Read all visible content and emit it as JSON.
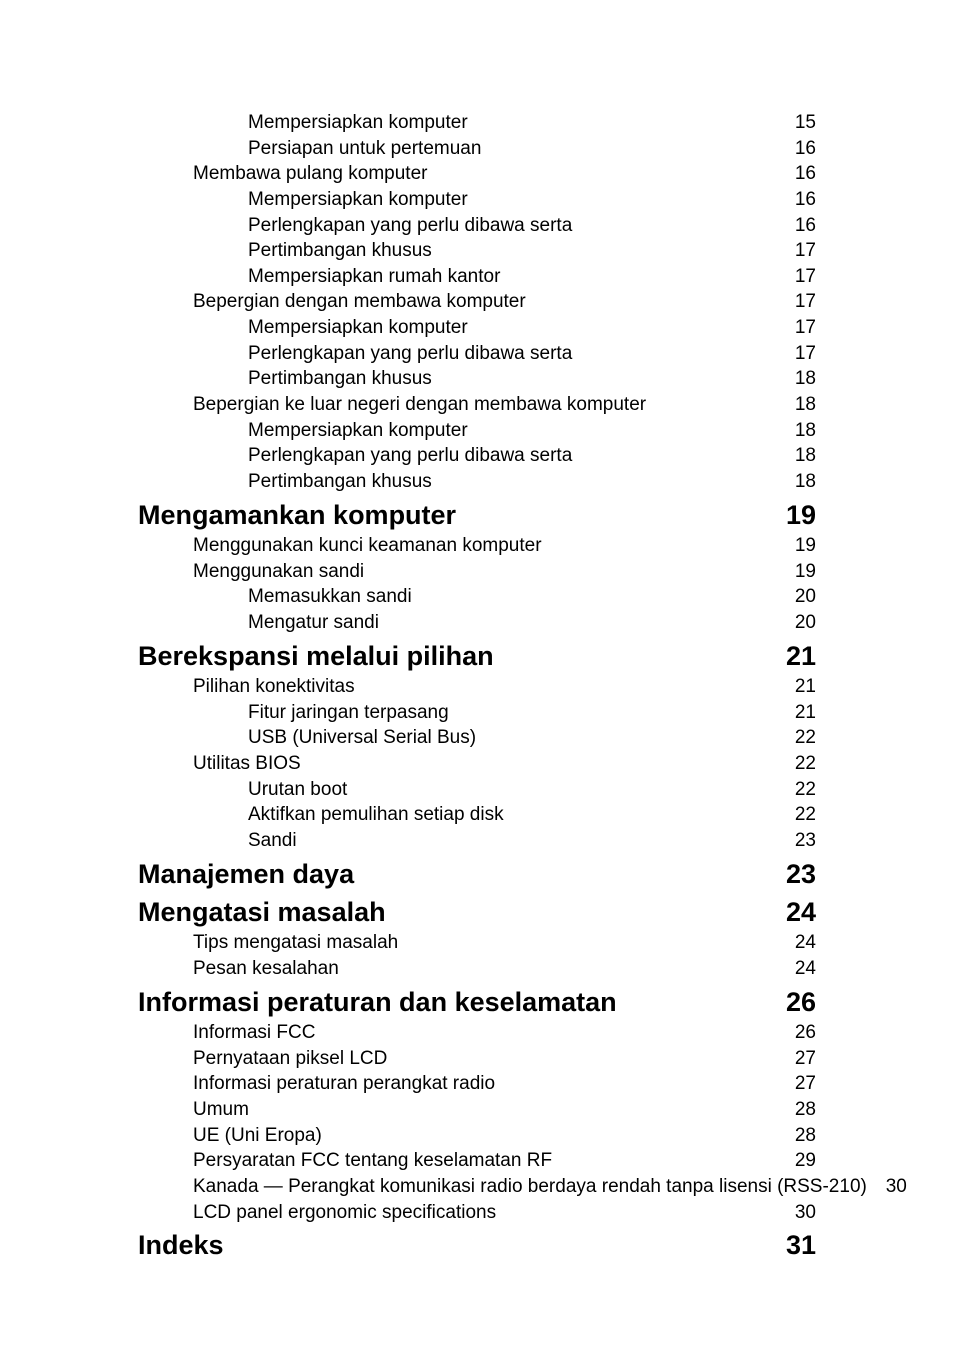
{
  "toc": [
    {
      "level": 2,
      "label": "Mempersiapkan komputer",
      "page": "15"
    },
    {
      "level": 2,
      "label": "Persiapan untuk pertemuan",
      "page": "16"
    },
    {
      "level": 1,
      "label": "Membawa pulang komputer",
      "page": "16"
    },
    {
      "level": 2,
      "label": "Mempersiapkan komputer",
      "page": "16"
    },
    {
      "level": 2,
      "label": "Perlengkapan yang perlu dibawa serta",
      "page": "16"
    },
    {
      "level": 2,
      "label": "Pertimbangan khusus",
      "page": "17"
    },
    {
      "level": 2,
      "label": "Mempersiapkan rumah kantor",
      "page": "17"
    },
    {
      "level": 1,
      "label": "Bepergian dengan membawa komputer",
      "page": "17"
    },
    {
      "level": 2,
      "label": "Mempersiapkan komputer",
      "page": "17"
    },
    {
      "level": 2,
      "label": "Perlengkapan yang perlu dibawa serta",
      "page": "17"
    },
    {
      "level": 2,
      "label": "Pertimbangan khusus",
      "page": "18"
    },
    {
      "level": 1,
      "label": "Bepergian ke luar negeri dengan membawa komputer",
      "page": "18"
    },
    {
      "level": 2,
      "label": "Mempersiapkan komputer",
      "page": "18"
    },
    {
      "level": 2,
      "label": "Perlengkapan yang perlu dibawa serta",
      "page": "18"
    },
    {
      "level": 2,
      "label": "Pertimbangan khusus",
      "page": "18"
    },
    {
      "level": 0,
      "label": "Mengamankan komputer",
      "page": "19"
    },
    {
      "level": 1,
      "label": "Menggunakan kunci keamanan komputer",
      "page": "19"
    },
    {
      "level": 1,
      "label": "Menggunakan sandi",
      "page": "19"
    },
    {
      "level": 2,
      "label": "Memasukkan sandi",
      "page": "20"
    },
    {
      "level": 2,
      "label": "Mengatur sandi",
      "page": "20"
    },
    {
      "level": 0,
      "label": "Berekspansi melalui pilihan",
      "page": "21"
    },
    {
      "level": 1,
      "label": "Pilihan konektivitas",
      "page": "21"
    },
    {
      "level": 2,
      "label": "Fitur jaringan terpasang",
      "page": "21"
    },
    {
      "level": 2,
      "label": "USB (Universal Serial Bus)",
      "page": "22"
    },
    {
      "level": 1,
      "label": "Utilitas BIOS",
      "page": "22"
    },
    {
      "level": 2,
      "label": "Urutan boot",
      "page": "22"
    },
    {
      "level": 2,
      "label": "Aktifkan pemulihan setiap disk",
      "page": "22"
    },
    {
      "level": 2,
      "label": "Sandi",
      "page": "23"
    },
    {
      "level": 0,
      "label": "Manajemen daya",
      "page": "23"
    },
    {
      "level": 0,
      "label": "Mengatasi masalah",
      "page": "24"
    },
    {
      "level": 1,
      "label": "Tips mengatasi masalah",
      "page": "24"
    },
    {
      "level": 1,
      "label": "Pesan kesalahan",
      "page": "24"
    },
    {
      "level": 0,
      "label": "Informasi peraturan dan keselamatan",
      "page": "26"
    },
    {
      "level": 1,
      "label": "Informasi FCC",
      "page": "26"
    },
    {
      "level": 1,
      "label": "Pernyataan piksel LCD",
      "page": "27"
    },
    {
      "level": 1,
      "label": "Informasi peraturan perangkat radio",
      "page": "27"
    },
    {
      "level": 1,
      "label": "Umum",
      "page": "28"
    },
    {
      "level": 1,
      "label": "UE (Uni Eropa)",
      "page": "28"
    },
    {
      "level": 1,
      "label": "Persyaratan FCC tentang keselamatan RF",
      "page": "29"
    },
    {
      "level": 1,
      "label": "Kanada — Perangkat komunikasi radio berdaya rendah tanpa lisensi (RSS-210)",
      "page": "30"
    },
    {
      "level": 1,
      "label": "LCD panel ergonomic specifications",
      "page": "30"
    },
    {
      "level": 0,
      "label": "Indeks",
      "page": "31"
    }
  ]
}
